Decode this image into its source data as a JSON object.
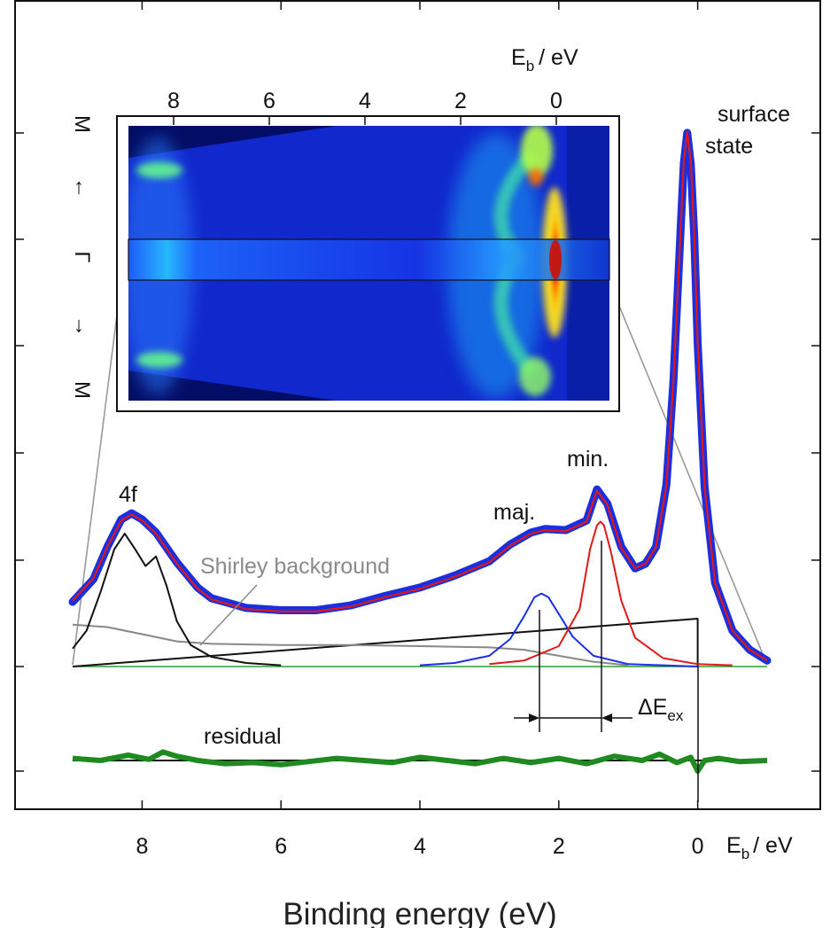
{
  "chart_data": {
    "type": "line",
    "xlabel": "Binding energy (eV)",
    "bottom_axis_label": {
      "main": "E",
      "sub": "b",
      "unit": "/ eV"
    },
    "top_axis_label": {
      "main": "E",
      "sub": "b",
      "unit": "/ eV"
    },
    "xlim": [
      9.0,
      -1.0
    ],
    "x_ticks": [
      8,
      6,
      4,
      2,
      0
    ],
    "x_tick_labels": [
      "8",
      "6",
      "4",
      "2",
      "0"
    ],
    "inset_ticks": [
      8,
      6,
      4,
      2,
      0
    ],
    "inset_tick_labels": [
      "8",
      "6",
      "4",
      "2",
      "0"
    ],
    "inset_side_labels": [
      "M",
      "←",
      "Γ",
      "→",
      "M"
    ],
    "annotations": {
      "surface_line1": "surface",
      "surface_line2": "state",
      "four_f": "4f",
      "minority": "min.",
      "majority": "maj.",
      "shirley": "Shirley background",
      "residual": "residual",
      "delta_main": "ΔE",
      "delta_sub": "ex"
    },
    "series": [
      {
        "kind": "data_points",
        "color": "#1a2fe0",
        "x": [
          9.0,
          8.7,
          8.5,
          8.3,
          8.15,
          8.0,
          7.8,
          7.5,
          7.2,
          7.0,
          6.5,
          6.0,
          5.5,
          5.0,
          4.5,
          4.0,
          3.5,
          3.0,
          2.7,
          2.4,
          2.2,
          1.9,
          1.6,
          1.45,
          1.3,
          1.1,
          0.9,
          0.75,
          0.6,
          0.45,
          0.35,
          0.25,
          0.2,
          0.15,
          0.1,
          0.05,
          0.0,
          -0.1,
          -0.25,
          -0.5,
          -0.75,
          -1.0
        ],
        "y": [
          0.54,
          0.73,
          1.0,
          1.23,
          1.28,
          1.23,
          1.12,
          0.87,
          0.66,
          0.57,
          0.49,
          0.47,
          0.47,
          0.51,
          0.59,
          0.66,
          0.76,
          0.88,
          1.02,
          1.12,
          1.15,
          1.14,
          1.22,
          1.48,
          1.36,
          1.0,
          0.82,
          0.86,
          1.0,
          1.52,
          2.38,
          3.6,
          4.2,
          4.46,
          4.2,
          3.6,
          2.7,
          1.5,
          0.7,
          0.3,
          0.14,
          0.05
        ]
      },
      {
        "kind": "fit",
        "color": "#e01818",
        "x": [
          9.0,
          8.7,
          8.5,
          8.3,
          8.15,
          8.0,
          7.8,
          7.5,
          7.2,
          7.0,
          6.5,
          6.0,
          5.5,
          5.0,
          4.5,
          4.0,
          3.5,
          3.0,
          2.7,
          2.4,
          2.2,
          1.9,
          1.6,
          1.45,
          1.3,
          1.1,
          0.9,
          0.75,
          0.6,
          0.45,
          0.35,
          0.25,
          0.2,
          0.15,
          0.1,
          0.05,
          0.0,
          -0.1,
          -0.25,
          -0.5,
          -0.75,
          -1.0
        ],
        "y": [
          0.55,
          0.74,
          1.0,
          1.22,
          1.27,
          1.22,
          1.11,
          0.86,
          0.65,
          0.56,
          0.48,
          0.46,
          0.46,
          0.5,
          0.58,
          0.65,
          0.75,
          0.87,
          1.01,
          1.11,
          1.14,
          1.13,
          1.21,
          1.47,
          1.35,
          0.99,
          0.82,
          0.86,
          1.0,
          1.52,
          2.38,
          3.6,
          4.22,
          4.47,
          4.22,
          3.6,
          2.7,
          1.5,
          0.7,
          0.3,
          0.14,
          0.05
        ]
      },
      {
        "kind": "4f_component",
        "color": "#111111",
        "x": [
          9.0,
          8.8,
          8.6,
          8.4,
          8.25,
          8.1,
          7.95,
          7.8,
          7.65,
          7.5,
          7.3,
          7.0,
          6.5,
          6.0
        ],
        "y": [
          0.15,
          0.3,
          0.62,
          0.98,
          1.11,
          0.98,
          0.84,
          0.92,
          0.68,
          0.38,
          0.18,
          0.08,
          0.03,
          0.01
        ]
      },
      {
        "kind": "shirley_background",
        "color": "#888888",
        "x": [
          9.0,
          8.5,
          8.0,
          7.5,
          7.0,
          6.0,
          5.0,
          4.0,
          3.0,
          2.5,
          2.0,
          1.5,
          1.0
        ],
        "y": [
          0.35,
          0.33,
          0.27,
          0.21,
          0.19,
          0.18,
          0.18,
          0.17,
          0.16,
          0.14,
          0.09,
          0.04,
          0.01
        ]
      },
      {
        "kind": "linear_background",
        "color": "#111111",
        "x": [
          9.0,
          0.0,
          0.0
        ],
        "y": [
          0.0,
          0.4,
          0.0
        ]
      },
      {
        "kind": "majority_peak",
        "color": "#1a2fe8",
        "x": [
          4.0,
          3.5,
          3.0,
          2.7,
          2.5,
          2.35,
          2.25,
          2.15,
          2.0,
          1.8,
          1.5,
          1.0,
          0.5,
          0.0
        ],
        "y": [
          0.01,
          0.03,
          0.09,
          0.23,
          0.42,
          0.58,
          0.61,
          0.58,
          0.44,
          0.25,
          0.09,
          0.02,
          0.01,
          0.0
        ]
      },
      {
        "kind": "minority_peak",
        "color": "#e01818",
        "x": [
          3.0,
          2.5,
          2.0,
          1.7,
          1.55,
          1.45,
          1.4,
          1.35,
          1.25,
          1.1,
          0.9,
          0.5,
          0.0,
          -0.5
        ],
        "y": [
          0.02,
          0.05,
          0.17,
          0.48,
          0.98,
          1.18,
          1.21,
          1.18,
          0.96,
          0.55,
          0.24,
          0.07,
          0.02,
          0.01
        ]
      },
      {
        "kind": "baseline",
        "color": "#2aa02a",
        "x": [
          9.0,
          -1.0
        ],
        "y": [
          0.0,
          0.0
        ]
      },
      {
        "kind": "residual",
        "color": "#1f8a1f",
        "x": [
          9.0,
          8.6,
          8.2,
          7.9,
          7.7,
          7.5,
          7.2,
          6.8,
          6.4,
          6.0,
          5.6,
          5.2,
          4.8,
          4.4,
          4.0,
          3.6,
          3.2,
          2.8,
          2.4,
          2.0,
          1.6,
          1.2,
          0.8,
          0.55,
          0.3,
          0.1,
          0.0,
          -0.1,
          -0.3,
          -0.6,
          -1.0
        ],
        "y": [
          0.02,
          0.0,
          0.05,
          0.01,
          0.08,
          0.04,
          0.0,
          -0.03,
          -0.02,
          -0.04,
          -0.01,
          0.02,
          0.0,
          -0.02,
          0.03,
          0.0,
          -0.03,
          0.02,
          -0.02,
          0.02,
          -0.03,
          0.04,
          0.0,
          0.06,
          -0.02,
          0.03,
          -0.1,
          0.0,
          0.02,
          -0.01,
          0.0
        ]
      }
    ]
  }
}
